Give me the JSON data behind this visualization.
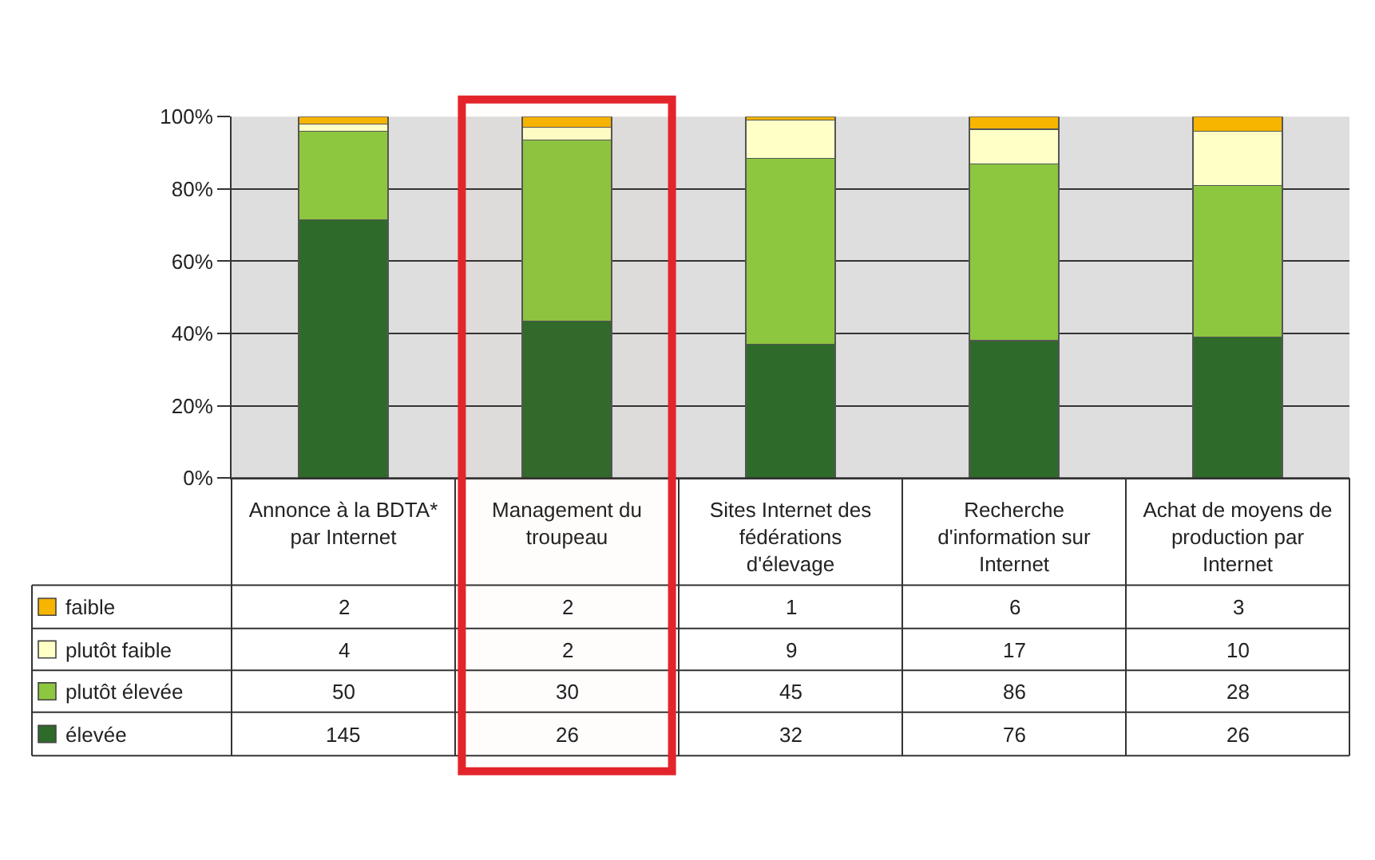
{
  "chart_data": {
    "type": "bar",
    "stacked": true,
    "categories": [
      "Annonce à la BDTA* par Internet",
      "Management du troupeau",
      "Sites Internet des fédérations d'élevage",
      "Recherche d'information sur Internet",
      "Achat de moyens de production par Internet"
    ],
    "series": [
      {
        "name": "élevée",
        "color": "#2e6b2a",
        "values": [
          71.5,
          43.5,
          37,
          38,
          39
        ]
      },
      {
        "name": "plutôt élevée",
        "color": "#8dc63f",
        "values": [
          24.5,
          50,
          51.5,
          49,
          42
        ]
      },
      {
        "name": "plutôt faible",
        "color": "#ffffc6",
        "values": [
          2,
          3.5,
          10.5,
          9.5,
          15
        ]
      },
      {
        "name": "faible",
        "color": "#f7b500",
        "values": [
          2,
          3,
          1,
          3.5,
          4
        ]
      }
    ],
    "annotations": [
      "2",
      "2",
      "1",
      "6",
      "3",
      "4",
      "2",
      "9",
      "17",
      "10",
      "50",
      "30",
      "45",
      "86",
      "28",
      "145",
      "26",
      "32",
      "76",
      "26"
    ],
    "ylim": [
      0,
      100
    ],
    "yticks": [
      {
        "value": 0,
        "label": "0%"
      },
      {
        "value": 20,
        "label": "20%"
      },
      {
        "value": 40,
        "label": "40%"
      },
      {
        "value": 60,
        "label": "60%"
      },
      {
        "value": 80,
        "label": "80%"
      },
      {
        "value": 100,
        "label": "100%"
      }
    ],
    "grid": "y",
    "legend": "bottom left",
    "bands": [
      {
        "axis": "x",
        "from": "Management du troupeau",
        "to": "Management du troupeau",
        "color": "#e3242b"
      }
    ]
  }
}
